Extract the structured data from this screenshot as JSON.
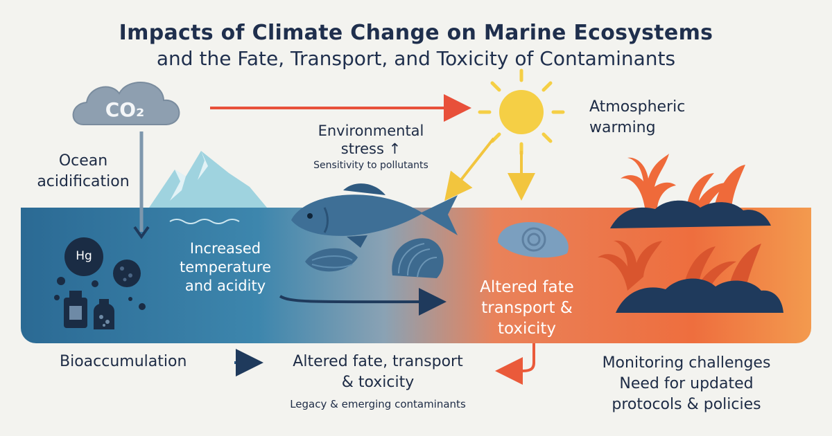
{
  "title": {
    "line1": "Impacts of Climate Change on Marine Ecosystems",
    "line2": "and the Fate, Transport, and Toxicity of Contaminants"
  },
  "co2_label": "CO₂",
  "ocean_acidification": [
    "Ocean",
    "acidification"
  ],
  "environmental_stress": {
    "line1": "Environmental",
    "line2": "stress ↑",
    "line3": "Sensitivity to pollutants"
  },
  "atmospheric_warming": [
    "Atmospheric",
    "warming"
  ],
  "hg_label": "Hg",
  "increased_temp": [
    "Increased",
    "temperature",
    "and acidity"
  ],
  "altered_sea": [
    "Altered fate",
    "transport &",
    "toxicity"
  ],
  "bottom": {
    "bioaccumulation": "Bioaccumulation",
    "altered_line1": "Altered fate, transport",
    "altered_line2": "& toxicity",
    "legacy": "Legacy & emerging contaminants",
    "monitoring_line1": "Monitoring challenges",
    "monitoring_line2": "Need for updated",
    "monitoring_line3": "protocols & policies"
  },
  "colors": {
    "navy": "#1f2f4d",
    "ocean_blue": "#2b6a94",
    "warm_orange": "#ee6e3e",
    "sun_yellow": "#f5cf45",
    "coral": "#ef6a3a",
    "arrow_red": "#e8503a"
  }
}
